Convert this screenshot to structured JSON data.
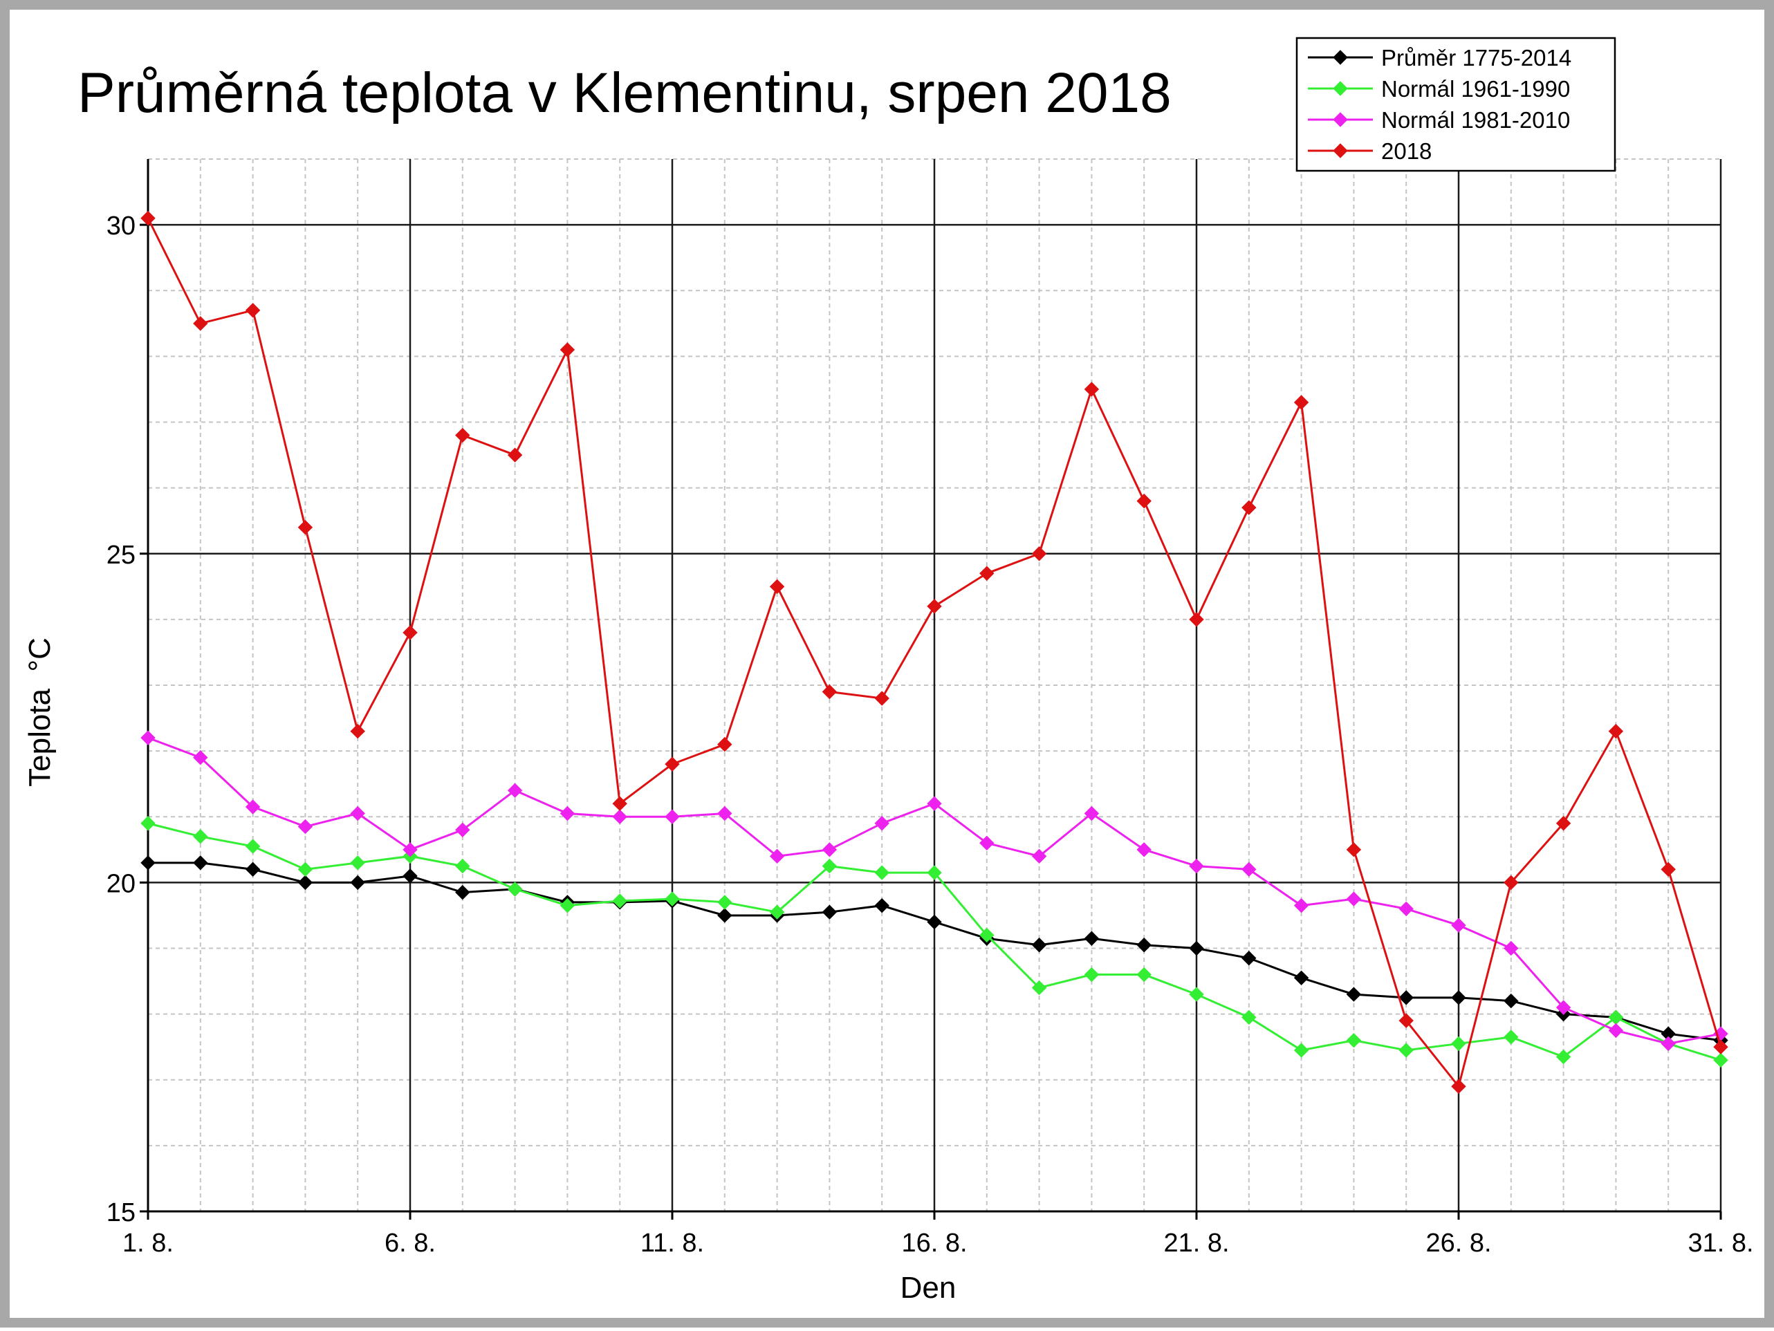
{
  "chart_data": {
    "type": "line",
    "title": "Průměrná teplota v Klementinu, srpen 2018",
    "xlabel": "Den",
    "ylabel": "Teplota  °C",
    "x": [
      1,
      2,
      3,
      4,
      5,
      6,
      7,
      8,
      9,
      10,
      11,
      12,
      13,
      14,
      15,
      16,
      17,
      18,
      19,
      20,
      21,
      22,
      23,
      24,
      25,
      26,
      27,
      28,
      29,
      30,
      31
    ],
    "x_tick_labels": [
      {
        "day": 1,
        "label": "1. 8."
      },
      {
        "day": 6,
        "label": "6. 8."
      },
      {
        "day": 11,
        "label": "11. 8."
      },
      {
        "day": 16,
        "label": "16. 8."
      },
      {
        "day": 21,
        "label": "21. 8."
      },
      {
        "day": 26,
        "label": "26. 8."
      },
      {
        "day": 31,
        "label": "31. 8."
      }
    ],
    "y_tick_labels": [
      "15",
      "20",
      "25",
      "30"
    ],
    "xlim": [
      1,
      31
    ],
    "ylim": [
      15,
      31
    ],
    "grid": true,
    "legend_position": "top-right",
    "series": [
      {
        "name": "Průměr 1775-2014",
        "color": "#000000",
        "values": [
          20.3,
          20.3,
          20.2,
          20.0,
          20.0,
          20.1,
          19.85,
          19.9,
          19.7,
          19.7,
          19.72,
          19.5,
          19.5,
          19.55,
          19.65,
          19.4,
          19.15,
          19.05,
          19.15,
          19.05,
          19.0,
          18.85,
          18.55,
          18.3,
          18.25,
          18.25,
          18.2,
          18.0,
          17.95,
          17.7,
          17.6
        ]
      },
      {
        "name": "Normál 1961-1990",
        "color": "#33ee33",
        "values": [
          20.9,
          20.7,
          20.55,
          20.2,
          20.3,
          20.4,
          20.25,
          19.9,
          19.65,
          19.72,
          19.75,
          19.7,
          19.55,
          20.25,
          20.15,
          20.15,
          19.2,
          18.4,
          18.6,
          18.6,
          18.3,
          17.95,
          17.45,
          17.6,
          17.45,
          17.55,
          17.65,
          17.35,
          17.95,
          17.55,
          17.3
        ]
      },
      {
        "name": "Normál 1981-2010",
        "color": "#ee22ee",
        "values": [
          22.2,
          21.9,
          21.15,
          20.85,
          21.05,
          20.5,
          20.8,
          21.4,
          21.05,
          21.0,
          21.0,
          21.05,
          20.4,
          20.5,
          20.9,
          21.2,
          20.6,
          20.4,
          21.05,
          20.5,
          20.25,
          20.2,
          19.65,
          19.75,
          19.6,
          19.35,
          19.0,
          18.1,
          17.75,
          17.55,
          17.7
        ]
      },
      {
        "name": "2018",
        "color": "#dd1111",
        "values": [
          30.1,
          28.5,
          28.7,
          25.4,
          22.3,
          23.8,
          26.8,
          26.5,
          28.1,
          21.2,
          21.8,
          22.1,
          24.5,
          22.9,
          22.8,
          24.2,
          24.7,
          25.0,
          27.5,
          25.8,
          24.0,
          25.7,
          27.3,
          20.5,
          17.9,
          16.9,
          20.0,
          20.9,
          22.3,
          20.2,
          17.5
        ]
      }
    ]
  }
}
